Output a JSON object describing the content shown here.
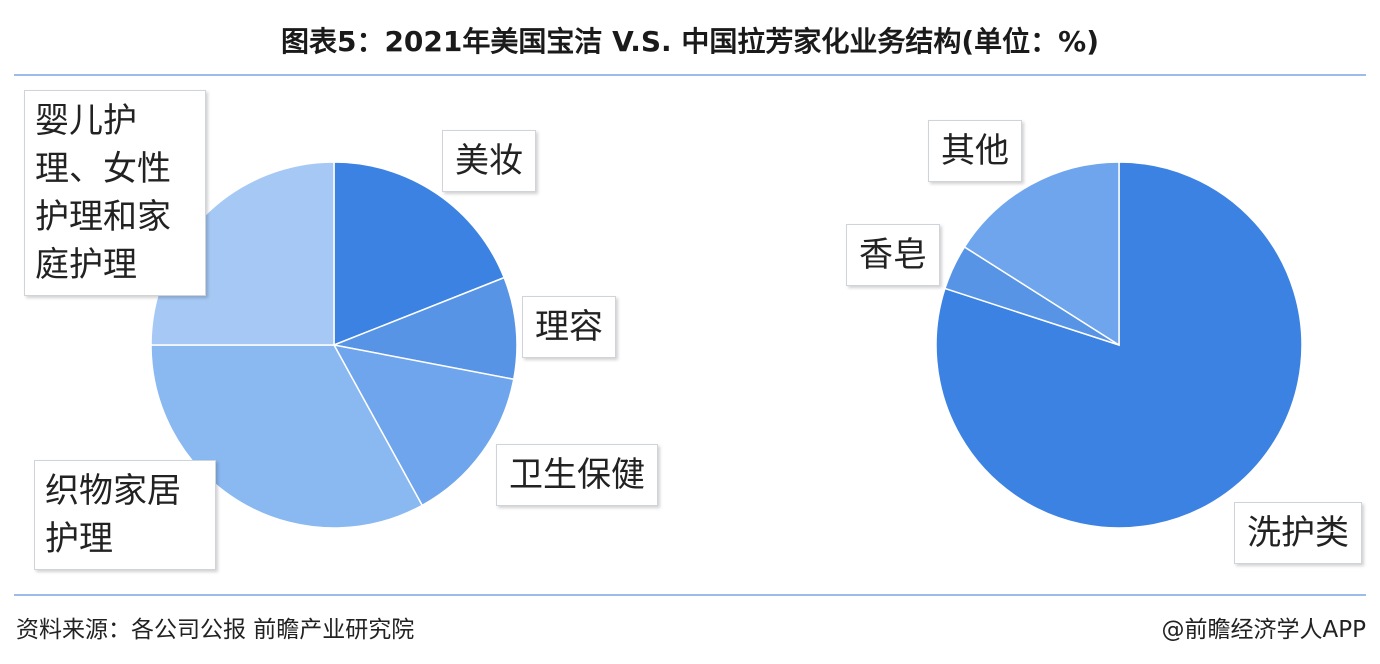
{
  "title": "图表5：2021年美国宝洁 V.S. 中国拉芳家化业务结构(单位：%)",
  "footer": {
    "source": "资料来源：各公司公报 前瞻产业研究院",
    "brand": "@前瞻经济学人APP"
  },
  "chart_data": [
    {
      "type": "pie",
      "title": "",
      "start_angle_deg": 0,
      "slices": [
        {
          "label": "美妆",
          "value": 19,
          "color": "#3b82e2"
        },
        {
          "label": "理容",
          "value": 9,
          "color": "#5894e6"
        },
        {
          "label": "卫生保健",
          "value": 14,
          "color": "#6ea5ec"
        },
        {
          "label": "织物家居护理",
          "value": 33,
          "color": "#8ab8f1"
        },
        {
          "label": "婴儿护理、女性护理和家庭护理",
          "value": 25,
          "color": "#a6c8f4"
        }
      ]
    },
    {
      "type": "pie",
      "title": "",
      "start_angle_deg": 0,
      "slices": [
        {
          "label": "洗护类",
          "value": 80,
          "color": "#3b82e2"
        },
        {
          "label": "香皂",
          "value": 4,
          "color": "#5894e6"
        },
        {
          "label": "其他",
          "value": 16,
          "color": "#6ea5ec"
        }
      ]
    }
  ]
}
